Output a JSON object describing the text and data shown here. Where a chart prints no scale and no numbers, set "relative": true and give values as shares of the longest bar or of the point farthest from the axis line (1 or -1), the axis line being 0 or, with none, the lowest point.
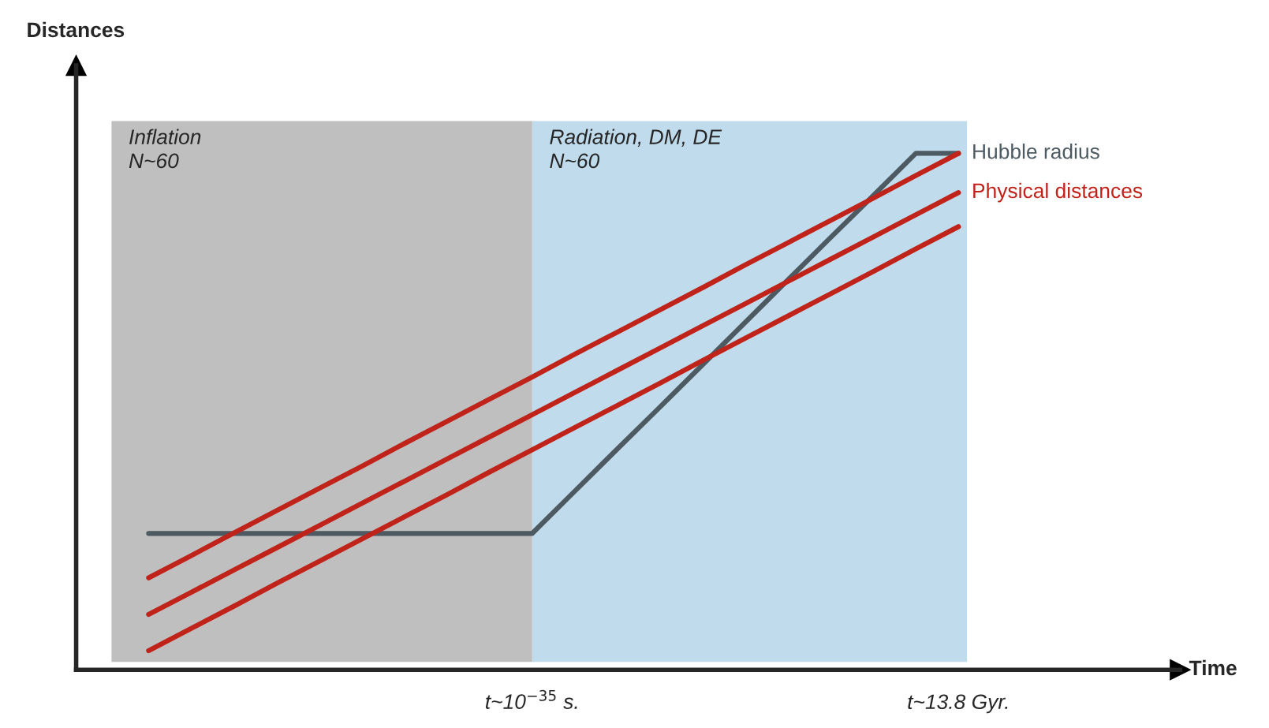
{
  "chart_data": {
    "type": "line",
    "relative": true,
    "annotations": [
      "Distances",
      "Time",
      "Inflation\nN~60",
      "Radiation, DM, DE\nN~60"
    ],
    "categories": [
      null,
      null,
      null,
      null,
      null,
      null,
      null,
      null,
      null,
      "t~10$^{−35}$ s.",
      null,
      null,
      null,
      null,
      null,
      null,
      null,
      null,
      null,
      "t~13.8 Gyr."
    ],
    "grid": false,
    "legend": false,
    "marker": "none",
    "line_style": "solid",
    "series": [
      {
        "name": "Hubble radius",
        "color": "#4d5a62",
        "values": [
          0.264,
          0.264,
          0.264,
          0.264,
          0.264,
          0.264,
          0.264,
          0.264,
          0.264,
          0.264,
          0.346,
          0.428,
          0.509,
          0.591,
          0.673,
          0.755,
          0.837,
          0.918,
          1.0,
          1.0
        ]
      },
      {
        "color": "#c0231a",
        "values": [
          0.178,
          0.221,
          0.265,
          0.308,
          0.351,
          0.394,
          0.438,
          0.481,
          0.524,
          0.567,
          0.611,
          0.654,
          0.697,
          0.74,
          0.784,
          0.827,
          0.87,
          0.913,
          0.957,
          1.0
        ]
      },
      {
        "name": "Physical distances",
        "color": "#c0231a",
        "values": [
          0.107,
          0.15,
          0.193,
          0.236,
          0.279,
          0.322,
          0.365,
          0.408,
          0.451,
          0.494,
          0.537,
          0.58,
          0.623,
          0.666,
          0.709,
          0.752,
          0.795,
          0.838,
          0.881,
          0.924
        ]
      },
      {
        "color": "#c0231a",
        "values": [
          0.037,
          0.08,
          0.123,
          0.167,
          0.21,
          0.253,
          0.296,
          0.339,
          0.383,
          0.426,
          0.469,
          0.512,
          0.555,
          0.599,
          0.642,
          0.685,
          0.728,
          0.771,
          0.815,
          0.858
        ]
      }
    ]
  }
}
